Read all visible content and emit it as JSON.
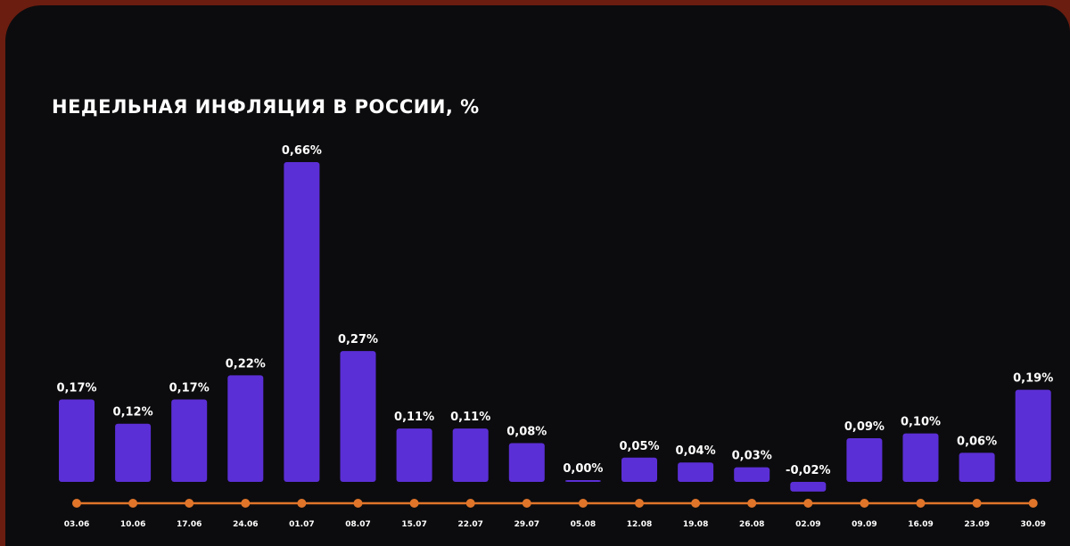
{
  "chart_data": {
    "type": "bar",
    "title": "НЕДЕЛЬНАЯ ИНФЛЯЦИЯ В РОССИИ, %",
    "categories": [
      "03.06",
      "10.06",
      "17.06",
      "24.06",
      "01.07",
      "08.07",
      "15.07",
      "22.07",
      "29.07",
      "05.08",
      "12.08",
      "19.08",
      "26.08",
      "02.09",
      "09.09",
      "16.09",
      "23.09",
      "30.09"
    ],
    "values": [
      0.17,
      0.12,
      0.17,
      0.22,
      0.66,
      0.27,
      0.11,
      0.11,
      0.08,
      0.0,
      0.05,
      0.04,
      0.03,
      -0.02,
      0.09,
      0.1,
      0.06,
      0.19
    ],
    "value_labels": [
      "0,17%",
      "0,12%",
      "0,17%",
      "0,22%",
      "0,66%",
      "0,27%",
      "0,11%",
      "0,11%",
      "0,08%",
      "0,00%",
      "0,05%",
      "0,04%",
      "0,03%",
      "-0,02%",
      "0,09%",
      "0,10%",
      "0,06%",
      "0,19%"
    ],
    "bar_color": "#5b2fd6",
    "timeline_color": "#e0752a",
    "grid": false,
    "legend": "none"
  }
}
